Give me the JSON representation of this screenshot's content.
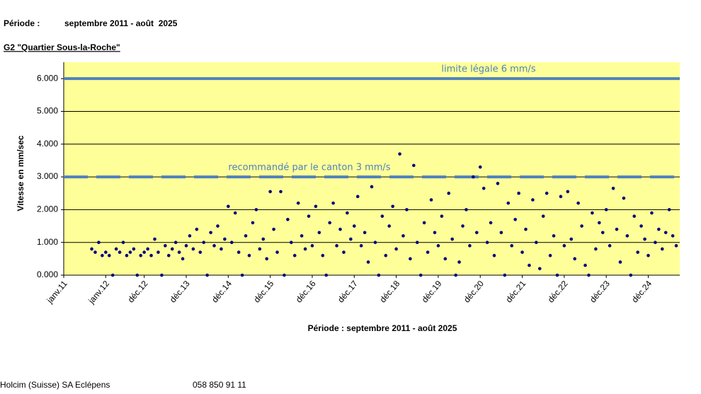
{
  "chart_data": {
    "type": "scatter",
    "title": "Période :",
    "period": "septembre 2011 - août  2025",
    "subtitle": "G2 \"Quartier Sous-la-Roche\"",
    "ylabel": "Vitesse en mm/sec",
    "xlabel": "Période : septembre 2011 - août 2025",
    "color": "#000080",
    "background": "#ffff99",
    "grid": true,
    "ylim": [
      0,
      6.5
    ],
    "yticks": [
      {
        "value": 0,
        "label": "0.000"
      },
      {
        "value": 1,
        "label": "1.000"
      },
      {
        "value": 2,
        "label": "2.000"
      },
      {
        "value": 3,
        "label": "3.000"
      },
      {
        "value": 4,
        "label": "4.000"
      },
      {
        "value": 5,
        "label": "5.000"
      },
      {
        "value": 6,
        "label": "6.000"
      }
    ],
    "xlim": [
      "2011-01",
      "2025-09"
    ],
    "xticks": [
      {
        "value": "2011-01",
        "label": "janv.11"
      },
      {
        "value": "2012-01",
        "label": "janv.12"
      },
      {
        "value": "2012-12",
        "label": "déc.12"
      },
      {
        "value": "2013-12",
        "label": "déc.13"
      },
      {
        "value": "2014-12",
        "label": "déc.14"
      },
      {
        "value": "2015-12",
        "label": "déc.15"
      },
      {
        "value": "2016-12",
        "label": "déc.16"
      },
      {
        "value": "2017-12",
        "label": "déc.17"
      },
      {
        "value": "2018-12",
        "label": "déc.18"
      },
      {
        "value": "2019-12",
        "label": "déc.19"
      },
      {
        "value": "2020-12",
        "label": "déc.20"
      },
      {
        "value": "2021-12",
        "label": "déc.21"
      },
      {
        "value": "2022-12",
        "label": "déc.22"
      },
      {
        "value": "2023-12",
        "label": "déc.23"
      },
      {
        "value": "2024-12",
        "label": "déc.24"
      }
    ],
    "reference_lines": [
      {
        "value": 6,
        "label": "limite légale 6 mm/s",
        "style": "solid",
        "color": "#4f81bd"
      },
      {
        "value": 3,
        "label": "recommandé par le canton 3 mm/s",
        "style": "dashed",
        "color": "#4f81bd"
      }
    ],
    "x": [
      "2011-09",
      "2011-10",
      "2011-11",
      "2011-12",
      "2012-01",
      "2012-02",
      "2012-03",
      "2012-04",
      "2012-05",
      "2012-06",
      "2012-07",
      "2012-08",
      "2012-09",
      "2012-10",
      "2012-11",
      "2012-12",
      "2013-01",
      "2013-02",
      "2013-03",
      "2013-04",
      "2013-05",
      "2013-06",
      "2013-07",
      "2013-08",
      "2013-09",
      "2013-10",
      "2013-11",
      "2013-12",
      "2014-01",
      "2014-02",
      "2014-03",
      "2014-04",
      "2014-05",
      "2014-06",
      "2014-07",
      "2014-08",
      "2014-09",
      "2014-10",
      "2014-11",
      "2014-12",
      "2015-01",
      "2015-02",
      "2015-03",
      "2015-04",
      "2015-05",
      "2015-06",
      "2015-07",
      "2015-08",
      "2015-09",
      "2015-10",
      "2015-11",
      "2015-12",
      "2016-01",
      "2016-02",
      "2016-03",
      "2016-04",
      "2016-05",
      "2016-06",
      "2016-07",
      "2016-08",
      "2016-09",
      "2016-10",
      "2016-11",
      "2016-12",
      "2017-01",
      "2017-02",
      "2017-03",
      "2017-04",
      "2017-05",
      "2017-06",
      "2017-07",
      "2017-08",
      "2017-09",
      "2017-10",
      "2017-11",
      "2017-12",
      "2018-01",
      "2018-02",
      "2018-03",
      "2018-04",
      "2018-05",
      "2018-06",
      "2018-07",
      "2018-08",
      "2018-09",
      "2018-10",
      "2018-11",
      "2018-12",
      "2019-01",
      "2019-02",
      "2019-03",
      "2019-04",
      "2019-05",
      "2019-06",
      "2019-07",
      "2019-08",
      "2019-09",
      "2019-10",
      "2019-11",
      "2019-12",
      "2020-01",
      "2020-02",
      "2020-03",
      "2020-04",
      "2020-05",
      "2020-06",
      "2020-07",
      "2020-08",
      "2020-09",
      "2020-10",
      "2020-11",
      "2020-12",
      "2021-01",
      "2021-02",
      "2021-03",
      "2021-04",
      "2021-05",
      "2021-06",
      "2021-07",
      "2021-08",
      "2021-09",
      "2021-10",
      "2021-11",
      "2021-12",
      "2022-01",
      "2022-02",
      "2022-03",
      "2022-04",
      "2022-05",
      "2022-06",
      "2022-07",
      "2022-08",
      "2022-09",
      "2022-10",
      "2022-11",
      "2022-12",
      "2023-01",
      "2023-02",
      "2023-03",
      "2023-04",
      "2023-05",
      "2023-06",
      "2023-07",
      "2023-08",
      "2023-09",
      "2023-10",
      "2023-11",
      "2023-12",
      "2024-01",
      "2024-02",
      "2024-03",
      "2024-04",
      "2024-05",
      "2024-06",
      "2024-07",
      "2024-08",
      "2024-09",
      "2024-10",
      "2024-11",
      "2024-12",
      "2025-01",
      "2025-02",
      "2025-03",
      "2025-04",
      "2025-05",
      "2025-06",
      "2025-07",
      "2025-08"
    ],
    "values": [
      0.8,
      0.7,
      1.0,
      0.6,
      0.7,
      0.6,
      0,
      0.8,
      0.7,
      1.0,
      0.6,
      0.7,
      0.8,
      0,
      0.6,
      0.7,
      0.8,
      0.6,
      1.1,
      0.7,
      0,
      0.9,
      0.6,
      0.8,
      1.0,
      0.7,
      0.5,
      0.9,
      1.2,
      0.8,
      1.4,
      0.7,
      1.0,
      0,
      1.3,
      0.9,
      1.5,
      0.8,
      1.1,
      2.1,
      1.0,
      1.9,
      0.7,
      0,
      1.2,
      0.6,
      1.6,
      2.0,
      0.8,
      1.1,
      0.5,
      2.55,
      1.4,
      0.7,
      2.55,
      0,
      1.7,
      1.0,
      0.6,
      2.2,
      1.2,
      0.8,
      1.8,
      0.9,
      2.1,
      1.3,
      0.6,
      0,
      1.6,
      2.2,
      0.9,
      1.4,
      0.7,
      1.9,
      1.1,
      1.5,
      2.4,
      0.9,
      1.3,
      0.4,
      2.7,
      1.0,
      0,
      1.8,
      0.6,
      1.5,
      2.1,
      0.8,
      3.7,
      1.2,
      2.0,
      0.5,
      3.35,
      1.0,
      0,
      1.6,
      0.7,
      2.3,
      1.3,
      0.9,
      1.8,
      0.5,
      2.5,
      1.1,
      0,
      0.4,
      1.5,
      2.0,
      0.9,
      3.0,
      1.3,
      3.3,
      2.65,
      1.0,
      1.6,
      0.6,
      2.8,
      1.3,
      0,
      2.2,
      0.9,
      1.7,
      2.5,
      0.7,
      1.4,
      0.3,
      2.3,
      1.0,
      0.2,
      1.8,
      2.5,
      0.6,
      1.2,
      0,
      2.4,
      0.9,
      2.55,
      1.1,
      0.5,
      2.2,
      1.5,
      0.3,
      0,
      1.9,
      0.8,
      1.6,
      1.3,
      2.0,
      0.9,
      2.65,
      1.4,
      0.4,
      2.35,
      1.2,
      0,
      1.8,
      0.7,
      1.5,
      1.1,
      0.6,
      1.9,
      1.0,
      1.4,
      0.8,
      1.3,
      2.0,
      1.2,
      0.9
    ]
  },
  "footer": {
    "company": "Holcim (Suisse) SA Eclépens",
    "phone": "058 850 91 11"
  }
}
